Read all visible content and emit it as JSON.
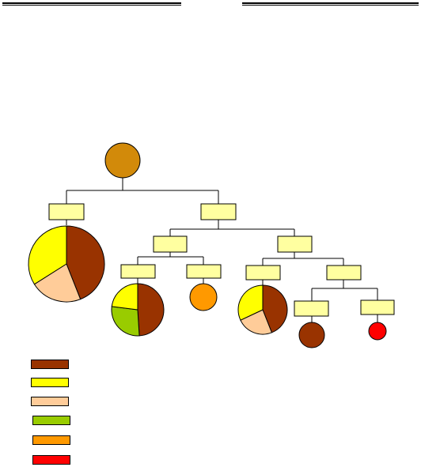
{
  "colors": {
    "root": "#d28a0a",
    "label_box_fill": "#ffffa0",
    "brown": "#993300",
    "yellow": "#ffff00",
    "peach": "#ffcc99",
    "green": "#99cc00",
    "orange": "#ff9900",
    "red": "#ff0000",
    "line": "#000000"
  },
  "legend": {
    "items": [
      {
        "name": "legend-swatch-brown",
        "color": "#993300"
      },
      {
        "name": "legend-swatch-yellow",
        "color": "#ffff00"
      },
      {
        "name": "legend-swatch-peach",
        "color": "#ffcc99"
      },
      {
        "name": "legend-swatch-green",
        "color": "#99cc00"
      },
      {
        "name": "legend-swatch-orange",
        "color": "#ff9900"
      },
      {
        "name": "legend-swatch-red",
        "color": "#ff0000"
      }
    ]
  },
  "pies": [
    {
      "name": "pie-left",
      "slices": [
        {
          "color": "#993300",
          "value": 0.44
        },
        {
          "color": "#ffcc99",
          "value": 0.22
        },
        {
          "color": "#ffff00",
          "value": 0.34
        }
      ]
    },
    {
      "name": "pie-mid",
      "slices": [
        {
          "color": "#993300",
          "value": 0.49
        },
        {
          "color": "#99cc00",
          "value": 0.28
        },
        {
          "color": "#ffff00",
          "value": 0.23
        }
      ]
    },
    {
      "name": "pie-right",
      "slices": [
        {
          "color": "#993300",
          "value": 0.44
        },
        {
          "color": "#ffcc99",
          "value": 0.24
        },
        {
          "color": "#ffff00",
          "value": 0.32
        }
      ]
    }
  ]
}
